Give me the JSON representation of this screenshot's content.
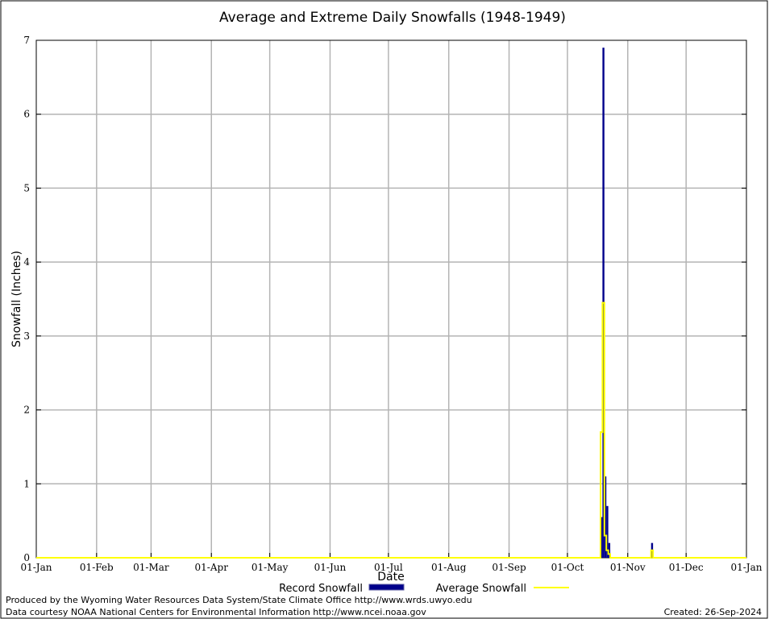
{
  "chart_data": {
    "type": "bar",
    "title": "Average and Extreme Daily Snowfalls (1948-1949)",
    "xlabel": "Date",
    "ylabel": "Snowfall (Inches)",
    "ylim": [
      0,
      7
    ],
    "yticks": [
      "0",
      "1",
      "2",
      "3",
      "4",
      "5",
      "6",
      "7"
    ],
    "xticks": [
      "01-Jan",
      "01-Feb",
      "01-Mar",
      "01-Apr",
      "01-May",
      "01-Jun",
      "01-Jul",
      "01-Aug",
      "01-Sep",
      "01-Oct",
      "01-Nov",
      "01-Dec",
      "01-Jan"
    ],
    "grid": true,
    "legend_position": "bottom",
    "series": [
      {
        "name": "Record Snowfall",
        "color": "#00008b",
        "style": "bar",
        "x": [
          "10-18",
          "10-19",
          "10-20",
          "10-21",
          "10-22",
          "11-13"
        ],
        "values": [
          0.55,
          6.9,
          1.1,
          0.7,
          0.2,
          0.2
        ]
      },
      {
        "name": "Average Snowfall",
        "color": "#ffff00",
        "style": "line",
        "x": [
          "10-18",
          "10-19",
          "10-20",
          "10-21",
          "10-22",
          "11-13"
        ],
        "values": [
          1.7,
          3.45,
          0.3,
          0.1,
          0.05,
          0.1
        ]
      }
    ]
  },
  "footer": {
    "producer": "Produced by the Wyoming Water Resources Data System/State Climate Office http://www.wrds.uwyo.edu",
    "courtesy": "Data courtesy NOAA National Centers for Environmental Information http://www.ncei.noaa.gov",
    "created": "Created:  26-Sep-2024"
  }
}
